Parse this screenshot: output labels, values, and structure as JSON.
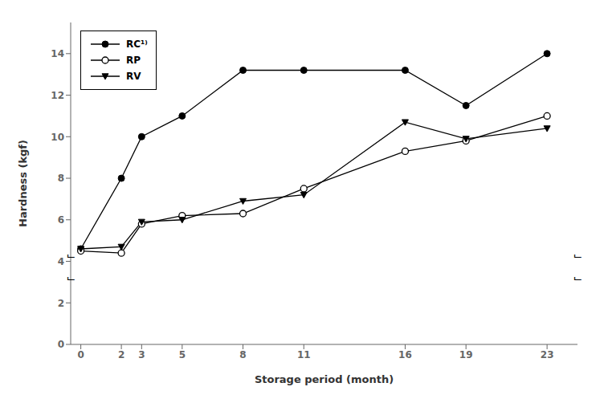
{
  "chart_data": {
    "type": "line",
    "xlabel": "Storage period (month)",
    "ylabel": "Hardness (kgf)",
    "x": [
      0,
      2,
      3,
      5,
      8,
      11,
      16,
      19,
      23
    ],
    "series": [
      {
        "name": "RC¹⁾",
        "color": "#000000",
        "marker": "circle",
        "values": [
          4.6,
          8.0,
          10.0,
          11.0,
          13.2,
          13.2,
          13.2,
          11.5,
          14.0
        ]
      },
      {
        "name": "RP",
        "color": "#000000",
        "marker": "open_circle",
        "values": [
          4.5,
          4.4,
          5.8,
          6.2,
          6.3,
          7.5,
          9.3,
          9.8,
          11.0
        ]
      },
      {
        "name": "RV",
        "color": "#000000",
        "marker": "triangle_down",
        "values": [
          4.6,
          4.7,
          5.9,
          6.0,
          6.9,
          7.2,
          10.7,
          9.9,
          10.4
        ]
      }
    ],
    "xlim": [
      -0.5,
      24.5
    ],
    "xticks": [
      0,
      2,
      3,
      5,
      8,
      11,
      16,
      19,
      23
    ],
    "ylim": [
      0,
      15.5
    ],
    "yticks": [
      0,
      2,
      4,
      6,
      8,
      10,
      12,
      14
    ],
    "grid": false,
    "legend": "upper left",
    "annotations": [
      {
        "text": "⌙",
        "x": -0.5,
        "y": 4.3
      },
      {
        "text": "⌙",
        "x": 24.5,
        "y": 4.3
      },
      {
        "text": "⌙",
        "x": -0.5,
        "y": 3.2
      },
      {
        "text": "⌙",
        "x": 24.5,
        "y": 3.2
      }
    ]
  }
}
